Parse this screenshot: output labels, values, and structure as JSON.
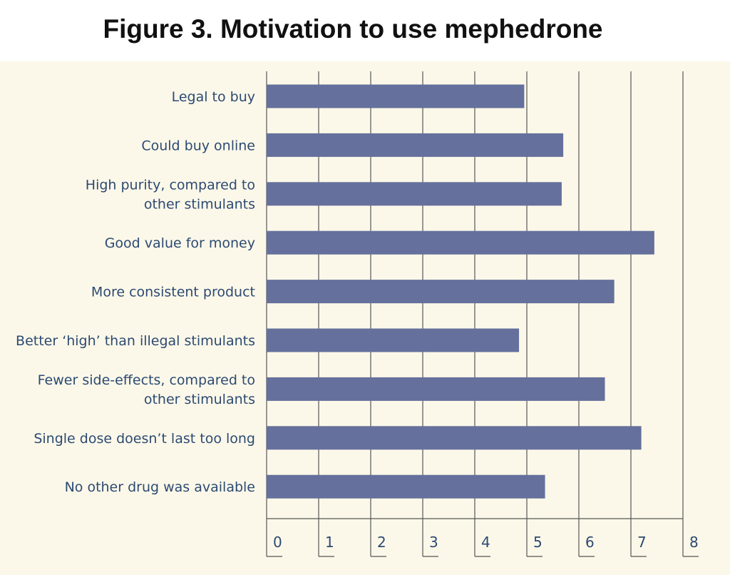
{
  "chart_data": {
    "type": "bar",
    "orientation": "horizontal",
    "title": "Figure 3. Motivation to use mephedrone",
    "xlabel": "",
    "ylabel": "",
    "categories": [
      [
        "Legal to buy"
      ],
      [
        "Could buy online"
      ],
      [
        "High purity, compared to",
        "other stimulants"
      ],
      [
        "Good value for money"
      ],
      [
        "More consistent product"
      ],
      [
        "Better ‘high’ than illegal stimulants"
      ],
      [
        "Fewer side-effects, compared to",
        "other stimulants"
      ],
      [
        "Single dose doesn’t last too long"
      ],
      [
        "No other drug was available"
      ]
    ],
    "values": [
      4.95,
      5.7,
      5.67,
      7.45,
      6.68,
      4.85,
      6.5,
      7.2,
      5.35
    ],
    "xlim": [
      0,
      8
    ],
    "xticks": [
      "0",
      "1",
      "2",
      "3",
      "4",
      "5",
      "6",
      "7",
      "8"
    ],
    "grid": true,
    "colors": {
      "bar": "#65709c",
      "background": "#fcf8e9",
      "grid": "#555555",
      "label": "#2c4a72"
    }
  }
}
